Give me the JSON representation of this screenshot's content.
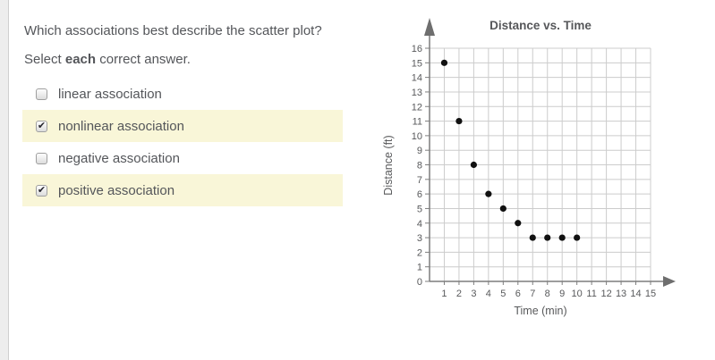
{
  "question": {
    "text": "Which associations best describe the scatter plot?",
    "instruction_prefix": "Select ",
    "instruction_bold": "each",
    "instruction_suffix": " correct answer."
  },
  "options": [
    {
      "label": "linear association",
      "checked": false,
      "highlighted": false
    },
    {
      "label": "nonlinear association",
      "checked": true,
      "highlighted": true
    },
    {
      "label": "negative association",
      "checked": false,
      "highlighted": false
    },
    {
      "label": "positive association",
      "checked": true,
      "highlighted": true
    }
  ],
  "checkbox": {
    "check_glyph": "✔"
  },
  "colors": {
    "highlight": "#f9f6d8",
    "text": "#54565a",
    "grid": "#cccccc",
    "axis": "#7d7d7d",
    "arrow": "#6e6e6e",
    "point": "#111111",
    "tick_text": "#58595b"
  },
  "chart_data": {
    "type": "scatter",
    "title": "Distance vs. Time",
    "xlabel": "Time (min)",
    "ylabel": "Distance (ft)",
    "xlim": [
      0,
      15
    ],
    "ylim": [
      0,
      16
    ],
    "x_ticks": [
      1,
      2,
      3,
      4,
      5,
      6,
      7,
      8,
      9,
      10,
      11,
      12,
      13,
      14,
      15
    ],
    "y_ticks": [
      0,
      1,
      2,
      3,
      4,
      5,
      6,
      7,
      8,
      9,
      10,
      11,
      12,
      13,
      14,
      15,
      16
    ],
    "grid": true,
    "legend": false,
    "points": [
      [
        1,
        15
      ],
      [
        2,
        11
      ],
      [
        3,
        8
      ],
      [
        4,
        6
      ],
      [
        5,
        5
      ],
      [
        6,
        4
      ],
      [
        7,
        3
      ],
      [
        8,
        3
      ],
      [
        9,
        3
      ],
      [
        10,
        3
      ]
    ]
  }
}
